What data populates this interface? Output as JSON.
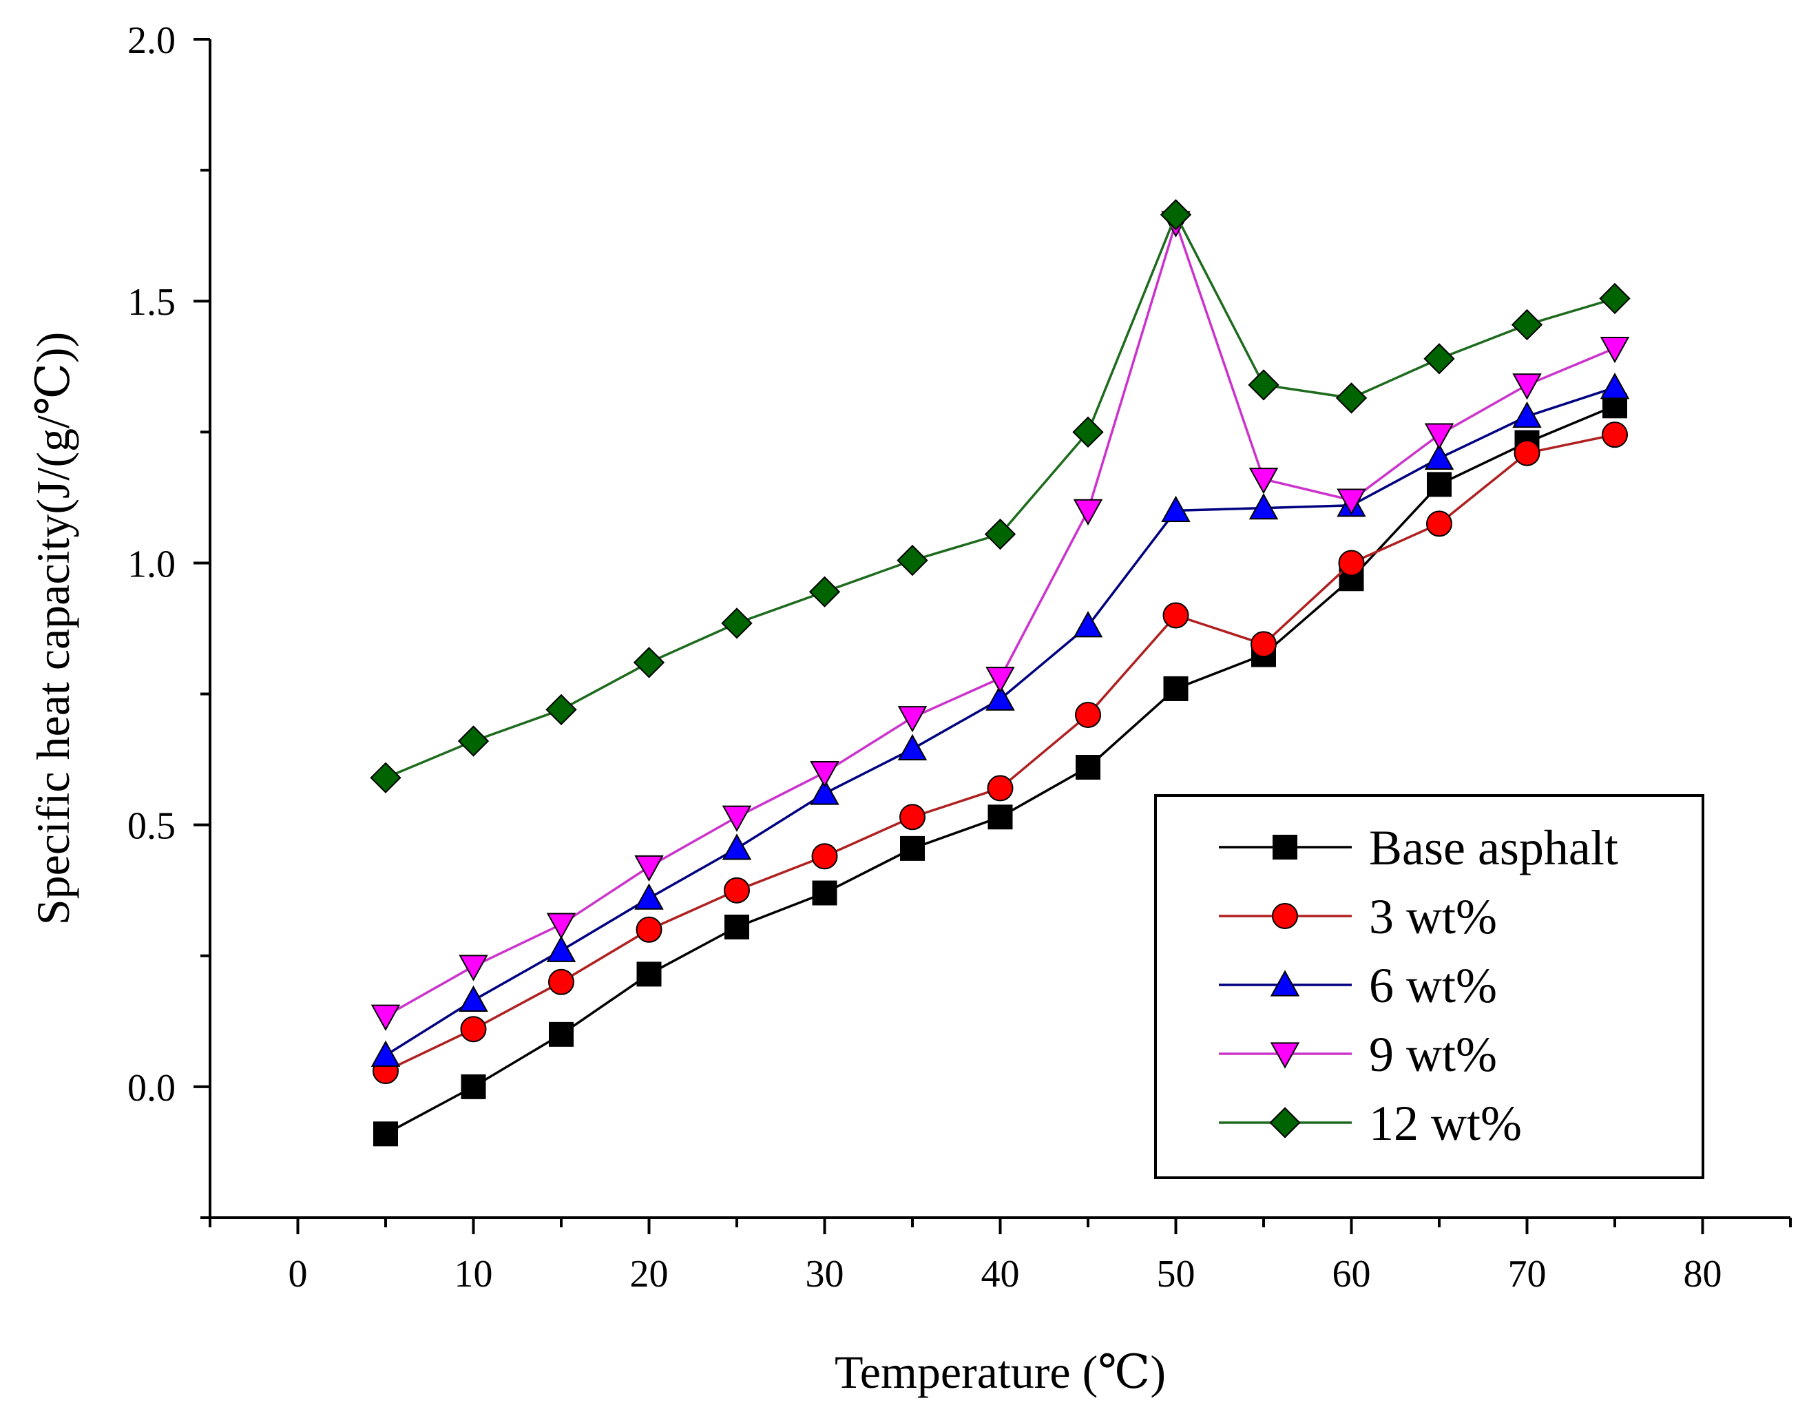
{
  "chart_data": {
    "type": "line",
    "title": "",
    "xlabel": "Temperature (℃)",
    "ylabel": "Specific heat capacity(J/(g/℃))",
    "xlim": [
      -5,
      85
    ],
    "ylim": [
      -0.25,
      2.0
    ],
    "xticks": [
      0,
      10,
      20,
      30,
      40,
      50,
      60,
      70,
      80
    ],
    "yticks": [
      0.0,
      0.5,
      1.0,
      1.5,
      2.0
    ],
    "ytick_labels": [
      "0.0",
      "0.5",
      "1.0",
      "1.5",
      "2.0"
    ],
    "legend_position": "bottom-right",
    "x": [
      5,
      10,
      15,
      20,
      25,
      30,
      35,
      40,
      45,
      50,
      55,
      60,
      65,
      70,
      75
    ],
    "series": [
      {
        "name": "Base asphalt",
        "color": "#000000",
        "marker": "square",
        "values": [
          -0.09,
          0.0,
          0.1,
          0.215,
          0.305,
          0.37,
          0.455,
          0.515,
          0.61,
          0.76,
          0.825,
          0.97,
          1.15,
          1.23,
          1.3
        ]
      },
      {
        "name": "3 wt%",
        "color": "#ff0000",
        "line_color": "#b02020",
        "marker": "circle",
        "values": [
          0.03,
          0.11,
          0.2,
          0.3,
          0.375,
          0.44,
          0.515,
          0.57,
          0.71,
          0.9,
          0.845,
          1.0,
          1.075,
          1.21,
          1.245
        ]
      },
      {
        "name": "6 wt%",
        "color": "#0000ff",
        "line_color": "#000080",
        "marker": "triangle-up",
        "values": [
          0.06,
          0.165,
          0.26,
          0.36,
          0.455,
          0.56,
          0.645,
          0.74,
          0.88,
          1.1,
          1.105,
          1.11,
          1.2,
          1.28,
          1.335
        ]
      },
      {
        "name": "9 wt%",
        "color": "#ff00ff",
        "line_color": "#cc33cc",
        "marker": "triangle-down",
        "values": [
          0.135,
          0.23,
          0.31,
          0.42,
          0.515,
          0.6,
          0.705,
          0.78,
          1.1,
          1.65,
          1.16,
          1.12,
          1.245,
          1.34,
          1.41
        ]
      },
      {
        "name": "12 wt%",
        "color": "#006400",
        "line_color": "#1e6b1e",
        "marker": "diamond",
        "values": [
          0.59,
          0.66,
          0.72,
          0.81,
          0.885,
          0.945,
          1.005,
          1.055,
          1.25,
          1.665,
          1.34,
          1.315,
          1.39,
          1.455,
          1.505
        ]
      }
    ]
  }
}
